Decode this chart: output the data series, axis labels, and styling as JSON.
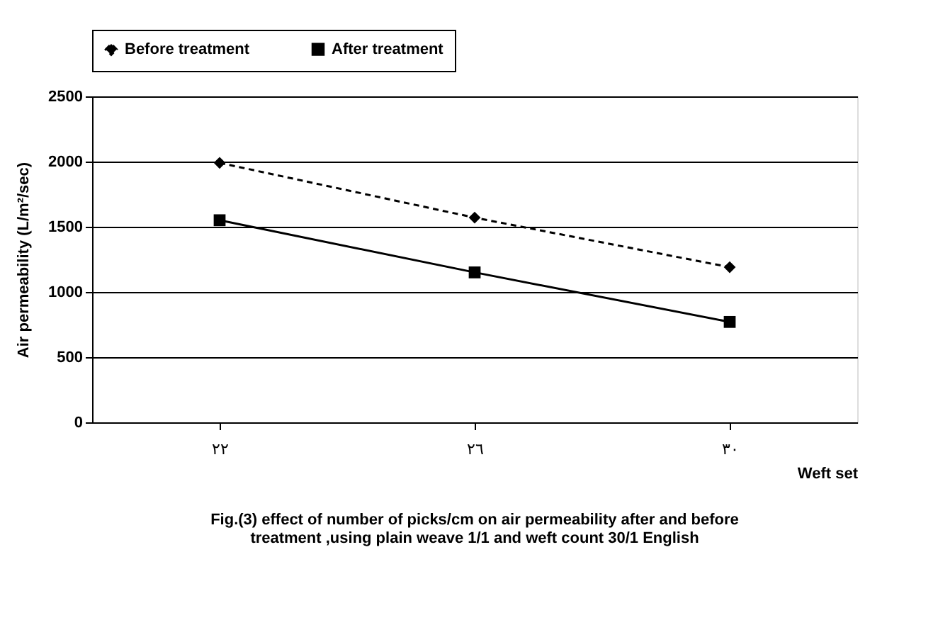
{
  "chart_data": {
    "type": "line",
    "categories": [
      "٢٢",
      "٢٦",
      "٣٠"
    ],
    "xlabel": "Weft set",
    "ylabel": "Air permeability (L/m²/sec)",
    "ylim": [
      0,
      2500
    ],
    "yticks": [
      0,
      500,
      1000,
      1500,
      2000,
      2500
    ],
    "grid": "y",
    "legend": "top",
    "series": [
      {
        "name": "Before treatment",
        "color": "#000000",
        "marker": "diamond",
        "line_style": "dashed",
        "values": [
          1990,
          1570,
          1190
        ]
      },
      {
        "name": "After treatment",
        "color": "#000000",
        "marker": "square",
        "line_style": "solid",
        "values": [
          1550,
          1150,
          770
        ]
      }
    ],
    "annotations": [
      "Fig.(3) effect of number of picks/cm on air permeability after and before\ntreatment ,using plain weave 1/1 and  weft count 30/1 English"
    ]
  }
}
